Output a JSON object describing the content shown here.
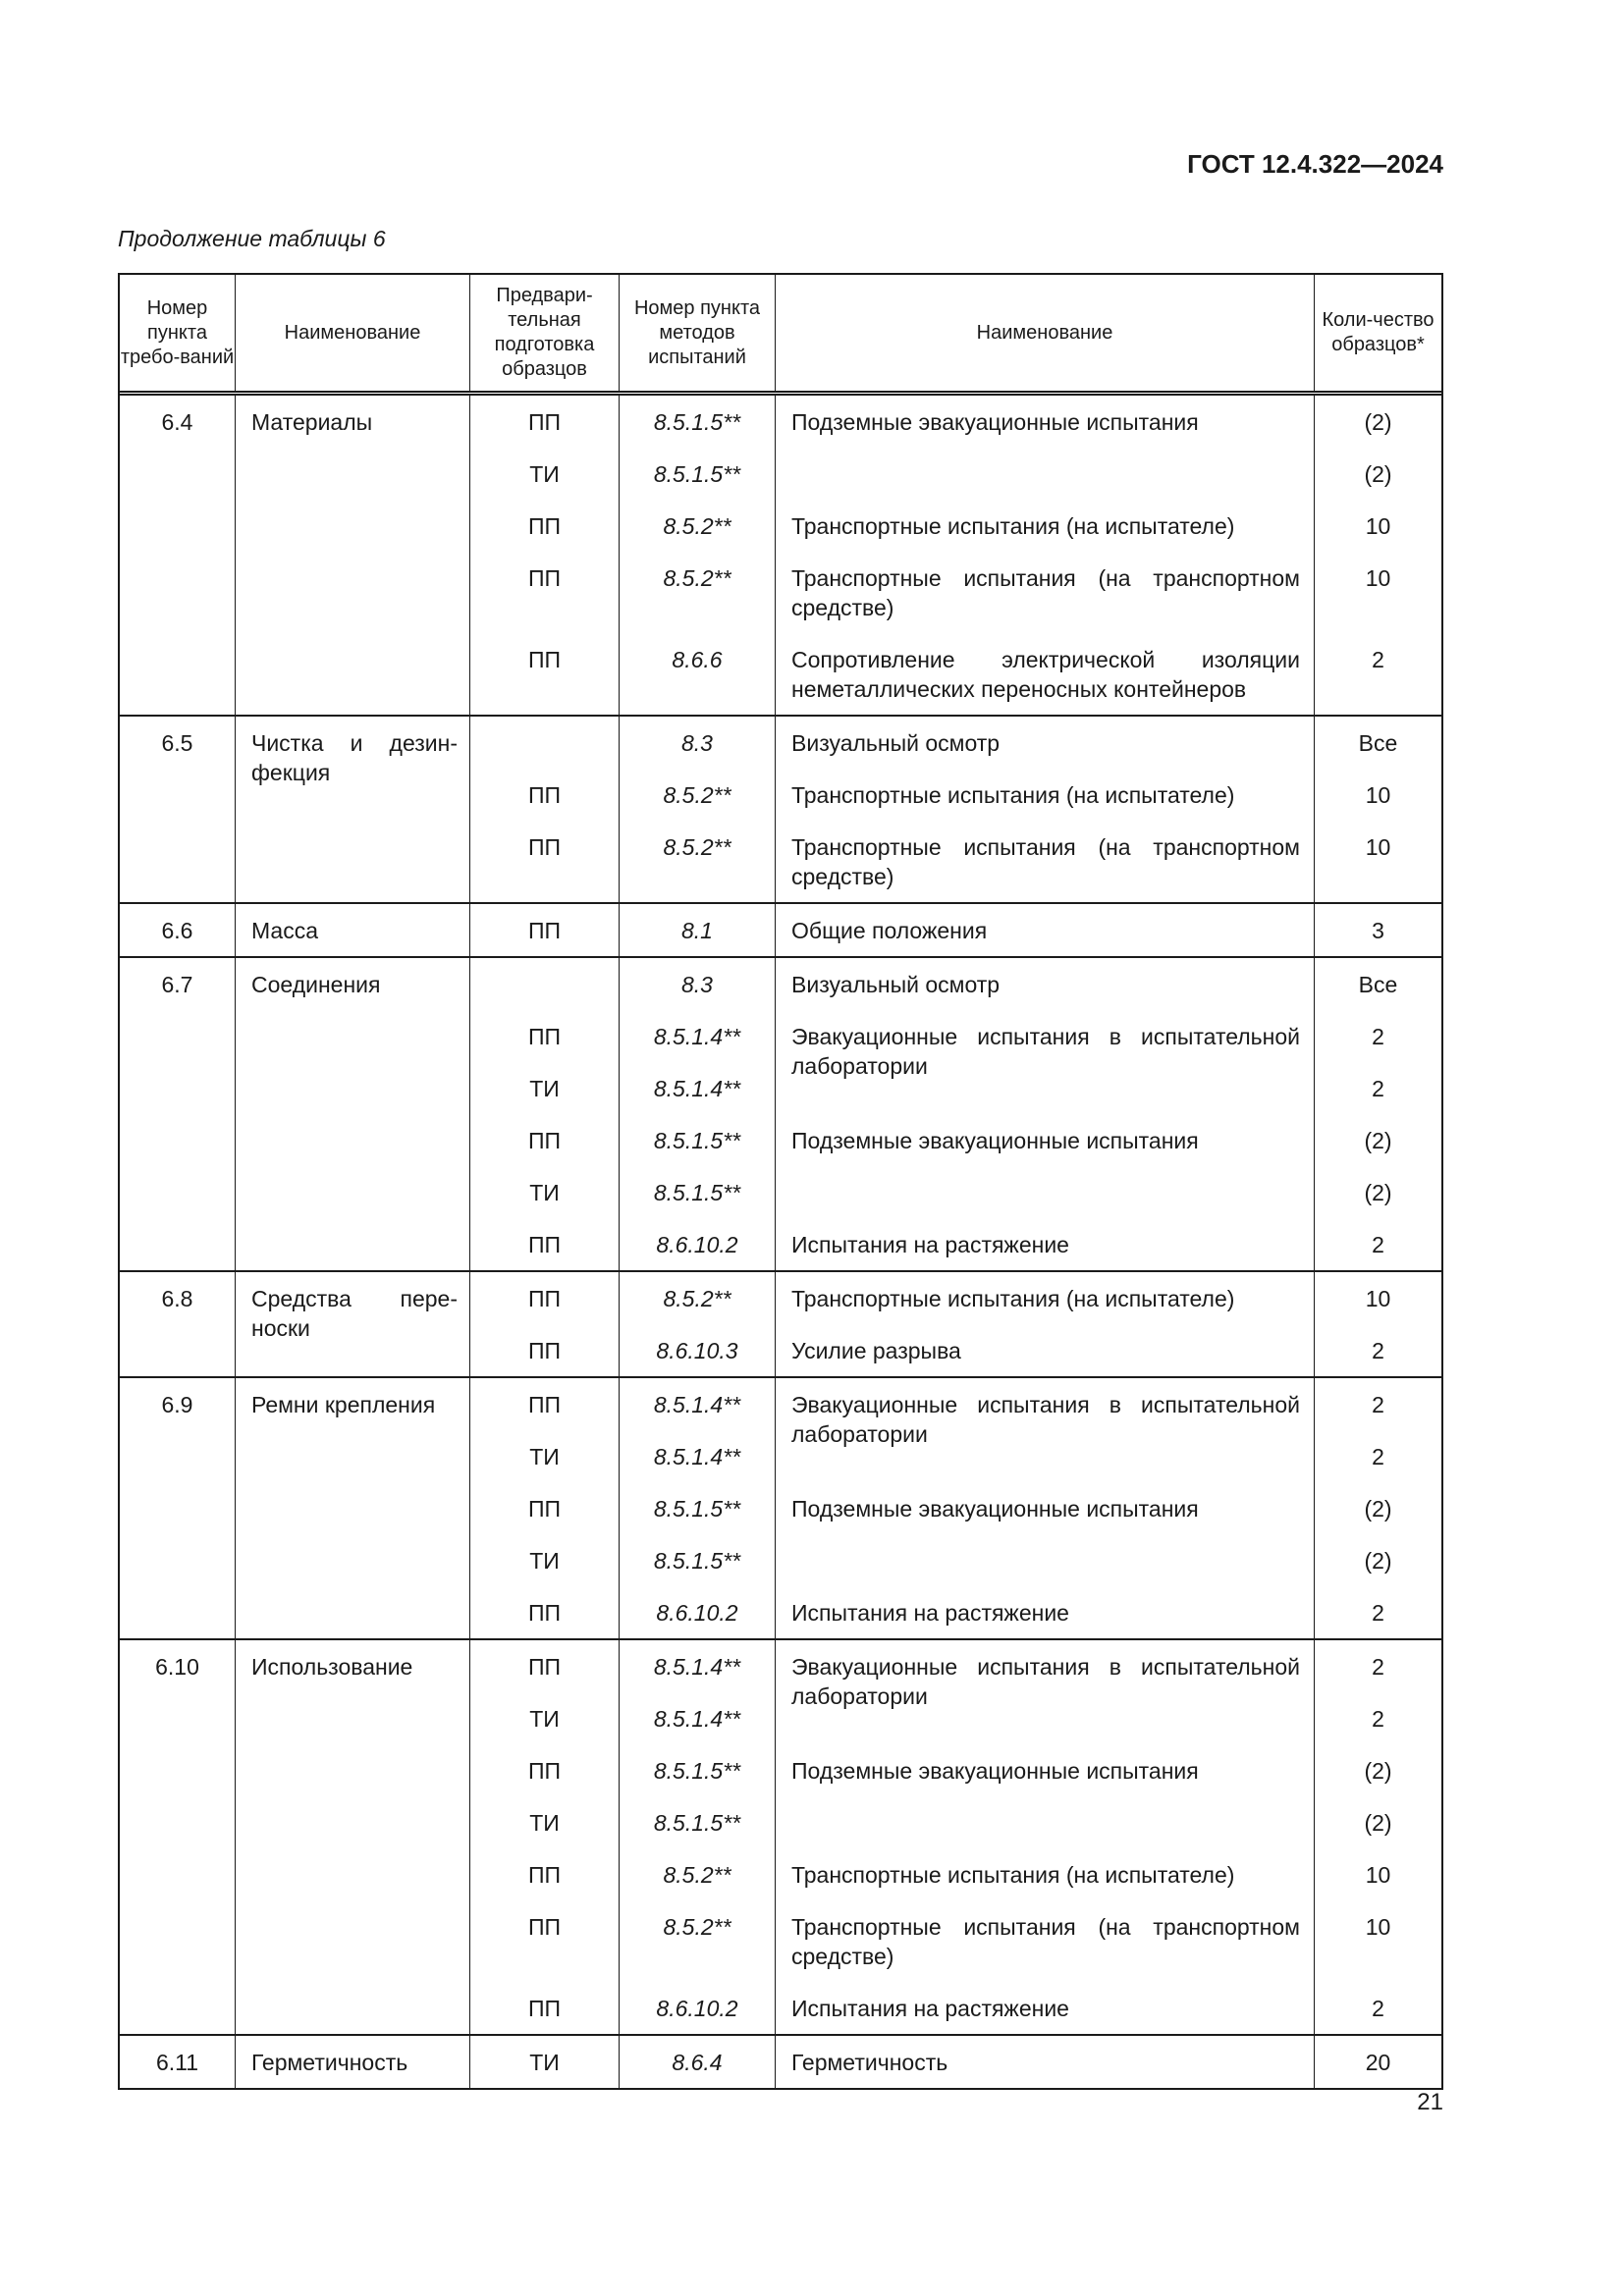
{
  "header": {
    "standard": "ГОСТ 12.4.322—2024",
    "caption": "Продолжение таблицы 6"
  },
  "table": {
    "columns": [
      "Номер пункта требо-ваний",
      "Наименование",
      "Предвари-тельная подготовка образцов",
      "Номер пункта методов испытаний",
      "Наименование",
      "Коли-чество образцов*"
    ],
    "groups": [
      {
        "num": "6.4",
        "name": "Материалы",
        "rows": [
          {
            "prep": "ПП",
            "method": "8.5.1.5**",
            "name": "Подземные эвакуационные испытания",
            "qty": "(2)"
          },
          {
            "prep": "ТИ",
            "method": "8.5.1.5**",
            "name": "",
            "qty": "(2)"
          },
          {
            "prep": "ПП",
            "method": "8.5.2**",
            "name": "Транспортные испытания (на испытателе)",
            "qty": "10"
          },
          {
            "prep": "ПП",
            "method": "8.5.2**",
            "name": "Транспортные испытания (на транспортном средстве)",
            "qty": "10"
          },
          {
            "prep": "ПП",
            "method": "8.6.6",
            "name": "Сопротивление электрической изоляции неметаллических переносных контейнеров",
            "qty": "2"
          }
        ]
      },
      {
        "num": "6.5",
        "name": "Чистка и дезин­фекция",
        "rows": [
          {
            "prep": "",
            "method": "8.3",
            "name": "Визуальный осмотр",
            "qty": "Все"
          },
          {
            "prep": "ПП",
            "method": "8.5.2**",
            "name": "Транспортные испытания (на испытателе)",
            "qty": "10"
          },
          {
            "prep": "ПП",
            "method": "8.5.2**",
            "name": "Транспортные испытания (на транспортном средстве)",
            "qty": "10"
          }
        ]
      },
      {
        "num": "6.6",
        "name": "Масса",
        "rows": [
          {
            "prep": "ПП",
            "method": "8.1",
            "name": "Общие положения",
            "qty": "3"
          }
        ]
      },
      {
        "num": "6.7",
        "name": "Соединения",
        "rows": [
          {
            "prep": "",
            "method": "8.3",
            "name": "Визуальный осмотр",
            "qty": "Все"
          },
          {
            "prep": "ПП",
            "method": "8.5.1.4**",
            "name": "Эвакуационные испытания в испытатель­ной лаборатории",
            "qty": "2"
          },
          {
            "prep": "ТИ",
            "method": "8.5.1.4**",
            "name": "",
            "qty": "2"
          },
          {
            "prep": "ПП",
            "method": "8.5.1.5**",
            "name": "Подземные эвакуационные испытания",
            "qty": "(2)"
          },
          {
            "prep": "ТИ",
            "method": "8.5.1.5**",
            "name": "",
            "qty": "(2)"
          },
          {
            "prep": "ПП",
            "method": "8.6.10.2",
            "name": "Испытания на растяжение",
            "qty": "2"
          }
        ]
      },
      {
        "num": "6.8",
        "name": "Средства пере­носки",
        "rows": [
          {
            "prep": "ПП",
            "method": "8.5.2**",
            "name": "Транспортные испытания (на испытателе)",
            "qty": "10"
          },
          {
            "prep": "ПП",
            "method": "8.6.10.3",
            "name": "Усилие разрыва",
            "qty": "2"
          }
        ]
      },
      {
        "num": "6.9",
        "name": "Ремни крепления",
        "rows": [
          {
            "prep": "ПП",
            "method": "8.5.1.4**",
            "name": "Эвакуационные испытания в испытатель­ной лаборатории",
            "qty": "2"
          },
          {
            "prep": "ТИ",
            "method": "8.5.1.4**",
            "name": "",
            "qty": "2"
          },
          {
            "prep": "ПП",
            "method": "8.5.1.5**",
            "name": "Подземные эвакуационные испытания",
            "qty": "(2)"
          },
          {
            "prep": "ТИ",
            "method": "8.5.1.5**",
            "name": "",
            "qty": "(2)"
          },
          {
            "prep": "ПП",
            "method": "8.6.10.2",
            "name": "Испытания на растяжение",
            "qty": "2"
          }
        ]
      },
      {
        "num": "6.10",
        "name": "Использование",
        "rows": [
          {
            "prep": "ПП",
            "method": "8.5.1.4**",
            "name": "Эвакуационные испытания в испытатель­ной лаборатории",
            "qty": "2"
          },
          {
            "prep": "ТИ",
            "method": "8.5.1.4**",
            "name": "",
            "qty": "2"
          },
          {
            "prep": "ПП",
            "method": "8.5.1.5**",
            "name": "Подземные эвакуационные испытания",
            "qty": "(2)"
          },
          {
            "prep": "ТИ",
            "method": "8.5.1.5**",
            "name": "",
            "qty": "(2)"
          },
          {
            "prep": "ПП",
            "method": "8.5.2**",
            "name": "Транспортные испытания (на испытателе)",
            "qty": "10"
          },
          {
            "prep": "ПП",
            "method": "8.5.2**",
            "name": "Транспортные испытания (на транспортном средстве)",
            "qty": "10"
          },
          {
            "prep": "ПП",
            "method": "8.6.10.2",
            "name": "Испытания на растяжение",
            "qty": "2"
          }
        ]
      },
      {
        "num": "6.11",
        "name": "Герметичность",
        "rows": [
          {
            "prep": "ТИ",
            "method": "8.6.4",
            "name": "Герметичность",
            "qty": "20"
          }
        ]
      }
    ]
  },
  "footer": {
    "page_number": "21"
  }
}
